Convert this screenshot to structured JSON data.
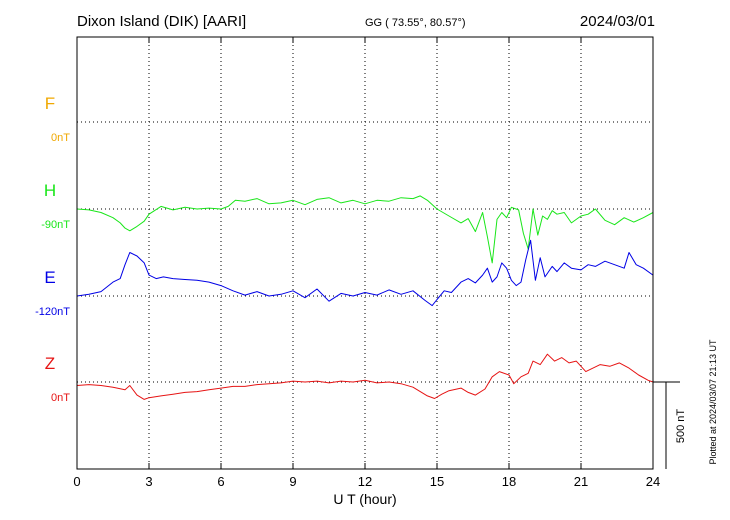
{
  "header": {
    "station": "Dixon Island (DIK)  [AARI]",
    "coords": "GG ( 73.55°,  80.57°)",
    "date": "2024/03/01"
  },
  "footer": {
    "plotted": "Plotted at 2024/03/07 21:13 UT"
  },
  "chart_data": {
    "type": "line",
    "xlabel": "U T (hour)",
    "xlim": [
      0,
      24
    ],
    "xticks": [
      0,
      3,
      6,
      9,
      12,
      15,
      18,
      21,
      24
    ],
    "scale_bar_label": "500 nT",
    "scale_bar_value_nT": 500,
    "colors": {
      "F": "#f0a800",
      "H": "#19e619",
      "E": "#0000e6",
      "Z": "#e61414"
    },
    "series": [
      {
        "name": "F",
        "baseline_label": "0nT",
        "baseline_nT": 0,
        "x": [],
        "values": []
      },
      {
        "name": "H",
        "baseline_label": "-90nT",
        "baseline_nT": -90,
        "x": [
          0,
          0.5,
          1.0,
          1.5,
          1.8,
          2.0,
          2.2,
          2.5,
          2.8,
          3.0,
          3.5,
          4.0,
          4.5,
          5.0,
          5.5,
          6.0,
          6.3,
          6.6,
          7.0,
          7.5,
          8.0,
          8.5,
          9.0,
          9.5,
          10.0,
          10.5,
          11.0,
          11.5,
          12.0,
          12.5,
          13.0,
          13.5,
          14.0,
          14.3,
          14.6,
          15.0,
          15.5,
          16.0,
          16.3,
          16.6,
          16.9,
          17.1,
          17.3,
          17.5,
          17.7,
          17.9,
          18.1,
          18.4,
          18.6,
          18.8,
          19.0,
          19.2,
          19.4,
          19.6,
          19.8,
          20.0,
          20.3,
          20.6,
          21.0,
          21.3,
          21.6,
          22.0,
          22.4,
          22.8,
          23.2,
          23.6,
          24.0
        ],
        "values": [
          -90,
          -95,
          -110,
          -140,
          -170,
          -200,
          -215,
          -190,
          -160,
          -120,
          -75,
          -95,
          -80,
          -90,
          -85,
          -90,
          -75,
          -40,
          -45,
          -30,
          -60,
          -55,
          -40,
          -65,
          -35,
          -25,
          -55,
          -40,
          -60,
          -40,
          -45,
          -25,
          -30,
          -15,
          -40,
          -90,
          -130,
          -170,
          -145,
          -220,
          -110,
          -250,
          -400,
          -150,
          -110,
          -140,
          -80,
          -95,
          -230,
          -320,
          -90,
          -240,
          -130,
          -150,
          -100,
          -120,
          -110,
          -170,
          -130,
          -120,
          -90,
          -155,
          -180,
          -140,
          -165,
          -140,
          -110
        ]
      },
      {
        "name": "E",
        "baseline_label": "-120nT",
        "baseline_nT": -120,
        "x": [
          0,
          0.5,
          1.0,
          1.5,
          1.8,
          2.0,
          2.2,
          2.5,
          2.8,
          3.0,
          3.3,
          3.6,
          4.0,
          4.5,
          5.0,
          5.5,
          6.0,
          6.5,
          7.0,
          7.5,
          8.0,
          8.5,
          9.0,
          9.5,
          10.0,
          10.5,
          11.0,
          11.5,
          12.0,
          12.5,
          13.0,
          13.5,
          14.0,
          14.5,
          14.8,
          15.0,
          15.3,
          15.6,
          16.0,
          16.3,
          16.6,
          16.9,
          17.1,
          17.3,
          17.5,
          17.7,
          17.9,
          18.1,
          18.3,
          18.5,
          18.7,
          18.9,
          19.1,
          19.3,
          19.5,
          19.8,
          20.0,
          20.3,
          20.6,
          21.0,
          21.3,
          21.6,
          22.0,
          22.4,
          22.8,
          23.0,
          23.3,
          23.6,
          24.0
        ],
        "values": [
          -120,
          -110,
          -95,
          -40,
          -20,
          60,
          130,
          110,
          70,
          0,
          -20,
          -10,
          -20,
          -25,
          -30,
          -40,
          -60,
          -90,
          -115,
          -95,
          -120,
          -110,
          -90,
          -130,
          -80,
          -150,
          -105,
          -120,
          -100,
          -115,
          -85,
          -110,
          -90,
          -145,
          -175,
          -140,
          -90,
          -100,
          -40,
          -20,
          -45,
          0,
          40,
          -40,
          -10,
          70,
          40,
          -30,
          -60,
          -40,
          90,
          200,
          -30,
          100,
          -10,
          50,
          20,
          70,
          40,
          30,
          60,
          50,
          80,
          60,
          40,
          130,
          60,
          40,
          0
        ]
      },
      {
        "name": "Z",
        "baseline_label": "0nT",
        "baseline_nT": 0,
        "x": [
          0,
          0.5,
          1.0,
          1.5,
          2.0,
          2.2,
          2.5,
          2.8,
          3.0,
          3.5,
          4.0,
          4.5,
          5.0,
          5.5,
          6.0,
          6.5,
          7.0,
          7.5,
          8.0,
          8.5,
          9.0,
          9.5,
          10.0,
          10.5,
          11.0,
          11.5,
          12.0,
          12.5,
          13.0,
          13.5,
          14.0,
          14.3,
          14.6,
          14.9,
          15.2,
          15.5,
          16.0,
          16.3,
          16.6,
          17.0,
          17.3,
          17.6,
          18.0,
          18.2,
          18.5,
          18.8,
          19.0,
          19.3,
          19.6,
          19.9,
          20.2,
          20.5,
          20.8,
          21.2,
          21.5,
          21.8,
          22.2,
          22.6,
          23.0,
          23.4,
          23.8,
          24.0
        ],
        "values": [
          -20,
          -15,
          -20,
          -30,
          -45,
          -20,
          -75,
          -100,
          -90,
          -80,
          -70,
          -60,
          -55,
          -45,
          -35,
          -25,
          -25,
          -15,
          -10,
          -5,
          5,
          0,
          5,
          -5,
          5,
          0,
          10,
          -5,
          0,
          -10,
          -30,
          -55,
          -80,
          -95,
          -70,
          -50,
          -35,
          -60,
          -75,
          -40,
          30,
          60,
          40,
          -10,
          30,
          50,
          120,
          100,
          160,
          120,
          140,
          110,
          120,
          60,
          80,
          100,
          90,
          110,
          80,
          40,
          10,
          0
        ]
      }
    ]
  }
}
